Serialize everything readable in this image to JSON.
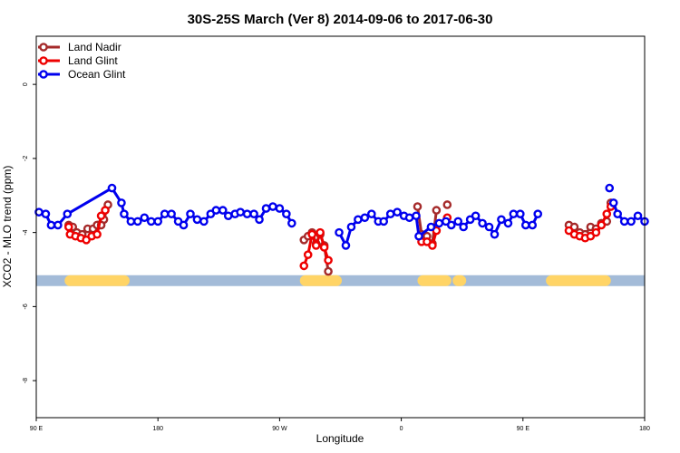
{
  "chart_data": {
    "type": "line",
    "title": "30S-25S March (Ver 8)   2014-09-06 to 2017-06-30",
    "xlabel": "Longitude",
    "ylabel": "XCO2 - MLO trend (ppm)",
    "xlim": [
      90,
      540
    ],
    "ylim": [
      -9,
      1.3
    ],
    "x_ticks": [
      {
        "value": 90,
        "label": "90 E"
      },
      {
        "value": 180,
        "label": "180"
      },
      {
        "value": 270,
        "label": "90 W"
      },
      {
        "value": 360,
        "label": "0"
      },
      {
        "value": 450,
        "label": "90 E"
      },
      {
        "value": 540,
        "label": "180"
      }
    ],
    "y_ticks": [
      {
        "value": 0,
        "label": "0"
      },
      {
        "value": -2,
        "label": "-2"
      },
      {
        "value": -4,
        "label": "-4"
      },
      {
        "value": -6,
        "label": "-6"
      },
      {
        "value": -8,
        "label": "-8"
      }
    ],
    "legend_position": "top-left",
    "band": {
      "y": -5.3,
      "ocean_color": "#a3bbd8",
      "land_color": "#ffd466",
      "land_segments": [
        [
          115,
          155
        ],
        [
          289,
          312
        ],
        [
          376,
          393
        ],
        [
          402,
          404
        ],
        [
          471,
          511
        ]
      ]
    },
    "series": [
      {
        "name": "Land Nadir",
        "color": "#a52a2a",
        "segments": [
          [
            [
              114,
              -3.8
            ],
            [
              117,
              -3.85
            ],
            [
              120,
              -4.0
            ],
            [
              124,
              -4.05
            ],
            [
              128,
              -3.9
            ],
            [
              132,
              -3.9
            ],
            [
              136,
              -3.8
            ],
            [
              140,
              -3.65
            ],
            [
              143,
              -3.25
            ]
          ],
          [
            [
              288,
              -4.2
            ],
            [
              291,
              -4.1
            ],
            [
              294,
              -4.0
            ],
            [
              297,
              -4.3
            ],
            [
              300,
              -4.05
            ],
            [
              303,
              -4.35
            ],
            [
              306,
              -5.05
            ]
          ],
          [
            [
              372,
              -3.3
            ],
            [
              375,
              -4.05
            ],
            [
              379,
              -4.1
            ],
            [
              383,
              -4.3
            ],
            [
              386,
              -3.4
            ]
          ],
          [
            [
              136,
              -3.8
            ]
          ],
          [
            [
              137,
              -3.8
            ]
          ],
          [
            [
              135,
              -3.8
            ]
          ],
          [
            [
              138,
              -3.8
            ]
          ],
          [
            [
              394,
              -3.25
            ]
          ],
          [
            [
              484,
              -3.8
            ],
            [
              488,
              -3.85
            ],
            [
              492,
              -4.0
            ],
            [
              496,
              -4.05
            ],
            [
              500,
              -3.85
            ],
            [
              504,
              -3.9
            ],
            [
              508,
              -3.75
            ],
            [
              512,
              -3.7
            ],
            [
              515,
              -3.2
            ]
          ]
        ]
      },
      {
        "name": "Land Glint",
        "color": "#ee0000",
        "segments": [
          [
            [
              114,
              -3.85
            ],
            [
              115,
              -4.05
            ],
            [
              119,
              -4.1
            ],
            [
              123,
              -4.15
            ],
            [
              127,
              -4.2
            ],
            [
              131,
              -4.1
            ],
            [
              135,
              -4.05
            ],
            [
              138,
              -3.55
            ],
            [
              141,
              -3.4
            ]
          ],
          [
            [
              288,
              -4.9
            ],
            [
              291,
              -4.6
            ],
            [
              294,
              -4.05
            ],
            [
              297,
              -4.35
            ],
            [
              300,
              -4.0
            ],
            [
              303,
              -4.4
            ],
            [
              306,
              -4.75
            ]
          ],
          [
            [
              375,
              -4.25
            ],
            [
              379,
              -4.25
            ],
            [
              383,
              -4.35
            ],
            [
              386,
              -3.95
            ]
          ],
          [
            [
              394,
              -3.6
            ]
          ],
          [
            [
              484,
              -3.95
            ],
            [
              488,
              -4.05
            ],
            [
              492,
              -4.1
            ],
            [
              496,
              -4.15
            ],
            [
              500,
              -4.1
            ],
            [
              504,
              -4.0
            ],
            [
              508,
              -3.8
            ],
            [
              512,
              -3.5
            ],
            [
              515,
              -3.3
            ]
          ]
        ]
      },
      {
        "name": "Ocean Glint",
        "color": "#0000ee",
        "segments": [
          [
            [
              92,
              -3.45
            ],
            [
              97,
              -3.5
            ],
            [
              101,
              -3.8
            ],
            [
              106,
              -3.8
            ],
            [
              113,
              -3.5
            ],
            [
              146,
              -2.8
            ],
            [
              153,
              -3.2
            ],
            [
              155,
              -3.5
            ],
            [
              160,
              -3.7
            ],
            [
              165,
              -3.7
            ],
            [
              170,
              -3.6
            ],
            [
              175,
              -3.7
            ],
            [
              180,
              -3.7
            ],
            [
              185,
              -3.5
            ],
            [
              190,
              -3.5
            ],
            [
              195,
              -3.7
            ],
            [
              199,
              -3.8
            ],
            [
              204,
              -3.5
            ],
            [
              209,
              -3.65
            ],
            [
              214,
              -3.7
            ],
            [
              219,
              -3.5
            ],
            [
              223,
              -3.4
            ],
            [
              228,
              -3.4
            ],
            [
              232,
              -3.55
            ],
            [
              237,
              -3.5
            ],
            [
              241,
              -3.45
            ],
            [
              246,
              -3.5
            ],
            [
              251,
              -3.5
            ],
            [
              255,
              -3.65
            ],
            [
              260,
              -3.35
            ],
            [
              265,
              -3.3
            ],
            [
              270,
              -3.35
            ],
            [
              275,
              -3.5
            ],
            [
              279,
              -3.75
            ]
          ],
          [
            [
              314,
              -4.0
            ],
            [
              319,
              -4.35
            ],
            [
              323,
              -3.85
            ],
            [
              328,
              -3.65
            ],
            [
              333,
              -3.6
            ],
            [
              338,
              -3.5
            ],
            [
              343,
              -3.7
            ],
            [
              347,
              -3.7
            ],
            [
              352,
              -3.5
            ],
            [
              357,
              -3.45
            ],
            [
              362,
              -3.55
            ],
            [
              366,
              -3.6
            ],
            [
              371,
              -3.55
            ],
            [
              373,
              -4.1
            ],
            [
              382,
              -3.85
            ],
            [
              388,
              -3.75
            ],
            [
              393,
              -3.7
            ],
            [
              397,
              -3.8
            ],
            [
              402,
              -3.7
            ],
            [
              406,
              -3.85
            ],
            [
              411,
              -3.65
            ],
            [
              415,
              -3.55
            ],
            [
              420,
              -3.75
            ],
            [
              425,
              -3.85
            ],
            [
              429,
              -4.05
            ],
            [
              434,
              -3.65
            ],
            [
              439,
              -3.75
            ],
            [
              443,
              -3.5
            ],
            [
              448,
              -3.5
            ],
            [
              452,
              -3.8
            ],
            [
              457,
              -3.8
            ],
            [
              461,
              -3.5
            ]
          ],
          [
            [
              514,
              -2.8
            ]
          ],
          [
            [
              517,
              -3.2
            ],
            [
              520,
              -3.5
            ],
            [
              525,
              -3.7
            ],
            [
              530,
              -3.7
            ],
            [
              535,
              -3.55
            ],
            [
              540,
              -3.7
            ]
          ]
        ]
      }
    ]
  }
}
